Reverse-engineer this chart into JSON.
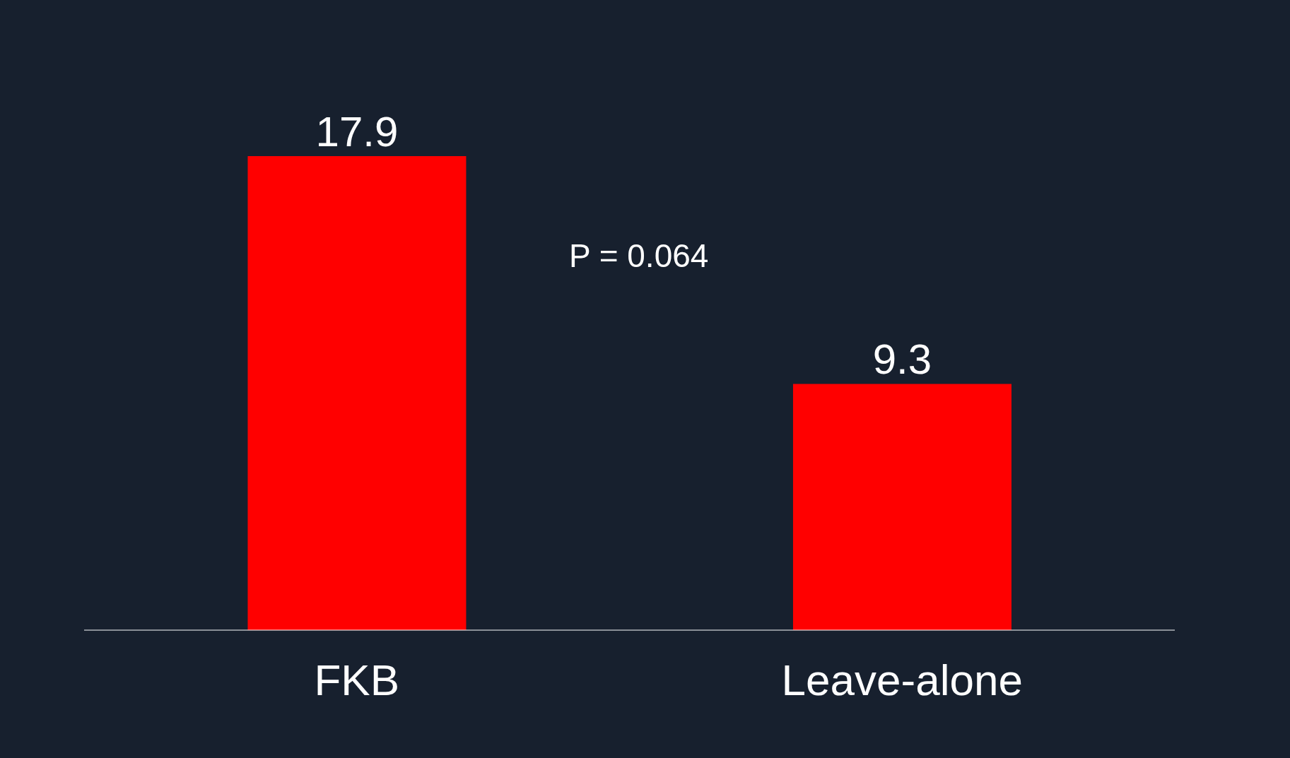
{
  "chart_data": {
    "type": "bar",
    "categories": [
      "FKB",
      "Leave-alone"
    ],
    "values": [
      17.9,
      9.3
    ],
    "color": "#ff0000",
    "data_labels": true,
    "annotations": [
      "P = 0.064"
    ]
  }
}
